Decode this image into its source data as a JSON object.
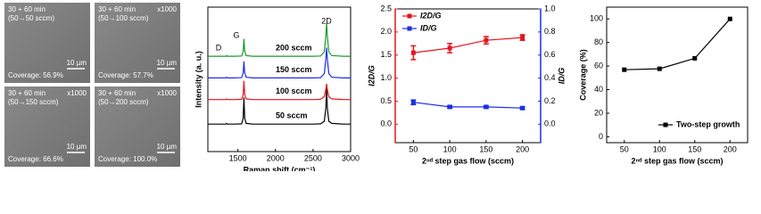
{
  "micrographs": [
    {
      "time": "30 + 60 min",
      "flow": "(50→50 sccm)",
      "scale_bar": "10 µm",
      "coverage": "Coverage: 56.9%"
    },
    {
      "time": "30 + 60 min",
      "magnification": "x1000",
      "flow": "(50→100 sccm)",
      "scale_bar": "10 µm",
      "coverage": "Coverage: 57.7%"
    },
    {
      "time": "30 + 60 min",
      "magnification": "x1000",
      "flow": "(50→150 sccm)",
      "scale_bar": "10 µm",
      "coverage": "Coverage: 66.6%"
    },
    {
      "time": "30 + 60 min",
      "magnification": "x1000",
      "flow": "(50→200 sccm)",
      "scale_bar": "10 µm",
      "coverage": "Coverage: 100.0%"
    }
  ],
  "chart_data": [
    {
      "type": "line",
      "xlabel": "Raman shift (cm⁻¹)",
      "ylabel": "Intensity (a. u.)",
      "annotations": [
        "D",
        "G",
        "2D"
      ],
      "x": [
        1100,
        1250,
        1340,
        1350,
        1360,
        1450,
        1550,
        1570,
        1580,
        1590,
        1610,
        1700,
        1900,
        2100,
        2300,
        2500,
        2600,
        2650,
        2670,
        2680,
        2690,
        2710,
        2750,
        2900,
        3000
      ],
      "xlim": [
        1100,
        3000
      ],
      "xticks": [
        1500,
        2000,
        2500,
        3000
      ],
      "ylim": [
        0,
        10
      ],
      "series": [
        {
          "name": "50 sccm",
          "color": "#000000",
          "values": [
            1.9,
            1.9,
            1.9,
            1.95,
            1.9,
            1.9,
            1.92,
            2.3,
            3.75,
            2.3,
            1.95,
            1.9,
            1.9,
            1.9,
            1.9,
            1.9,
            1.92,
            2.1,
            3.0,
            4.4,
            3.0,
            2.1,
            1.95,
            1.9,
            1.9
          ]
        },
        {
          "name": "100 sccm",
          "color": "#e8141c",
          "values": [
            3.6,
            3.6,
            3.6,
            3.65,
            3.6,
            3.6,
            3.62,
            3.95,
            4.9,
            3.95,
            3.65,
            3.6,
            3.6,
            3.6,
            3.6,
            3.6,
            3.62,
            3.8,
            4.3,
            4.7,
            4.3,
            3.8,
            3.65,
            3.6,
            3.6
          ]
        },
        {
          "name": "150 sccm",
          "color": "#1c2ee8",
          "values": [
            5.1,
            5.1,
            5.1,
            5.15,
            5.1,
            5.1,
            5.12,
            5.45,
            6.25,
            5.45,
            5.15,
            5.1,
            5.1,
            5.1,
            5.1,
            5.1,
            5.12,
            5.4,
            6.4,
            7.2,
            6.4,
            5.4,
            5.15,
            5.1,
            5.1
          ]
        },
        {
          "name": "200 sccm",
          "color": "#1a9a2a",
          "values": [
            6.6,
            6.6,
            6.6,
            6.65,
            6.6,
            6.6,
            6.62,
            6.95,
            7.8,
            6.95,
            6.65,
            6.6,
            6.6,
            6.6,
            6.6,
            6.6,
            6.62,
            6.9,
            8.0,
            8.9,
            8.0,
            6.9,
            6.65,
            6.6,
            6.6
          ]
        }
      ]
    },
    {
      "type": "errorbar",
      "xlabel": "2ⁿᵈ step gas flow (sccm)",
      "ylabel": "I2D/G",
      "y2label": "ID/G",
      "x": [
        50,
        100,
        150,
        200
      ],
      "xlim": [
        25,
        225
      ],
      "xticks": [
        50,
        100,
        150,
        200
      ],
      "ylim": [
        -0.4,
        2.5
      ],
      "yticks": [
        {
          "value": 0,
          "label": "0.0"
        },
        {
          "value": 0.5,
          "label": "0.5"
        },
        {
          "value": 1,
          "label": "1.0"
        },
        {
          "value": 1.5,
          "label": "1.5"
        },
        {
          "value": 2,
          "label": "2.0"
        },
        {
          "value": 2.5,
          "label": "2.5"
        }
      ],
      "y2lim": [
        -0.16,
        1.0
      ],
      "y2ticks": [
        {
          "value": 0,
          "label": "0.0"
        },
        {
          "value": 0.2,
          "label": "0.2"
        },
        {
          "value": 0.4,
          "label": "0.4"
        },
        {
          "value": 0.6,
          "label": "0.6"
        },
        {
          "value": 0.8,
          "label": "0.8"
        },
        {
          "value": 1,
          "label": "1.0"
        }
      ],
      "legend": "upper left",
      "series": [
        {
          "name": "I2D/G",
          "color": "#e8141c",
          "values": [
            1.55,
            1.65,
            1.82,
            1.88
          ],
          "errors": [
            0.15,
            0.1,
            0.08,
            0.06
          ]
        },
        {
          "name": "ID/G",
          "color": "#1c2ee8",
          "axis": "y2",
          "values": [
            0.19,
            0.15,
            0.15,
            0.14
          ],
          "errors": [
            0.02,
            0.01,
            0.01,
            0.01
          ]
        }
      ]
    },
    {
      "type": "line",
      "xlabel": "2ⁿᵈ step gas flow (sccm)",
      "ylabel": "Coverage (%)",
      "x": [
        50,
        100,
        150,
        200
      ],
      "xlim": [
        25,
        225
      ],
      "xticks": [
        50,
        100,
        150,
        200
      ],
      "ylim": [
        -5,
        110
      ],
      "yticks": [
        0,
        20,
        40,
        60,
        80,
        100
      ],
      "legend": "lower right",
      "markers": true,
      "series": [
        {
          "name": "Two-step growth",
          "color": "#000000",
          "values": [
            56.9,
            57.7,
            66.6,
            100.0
          ]
        }
      ]
    }
  ]
}
